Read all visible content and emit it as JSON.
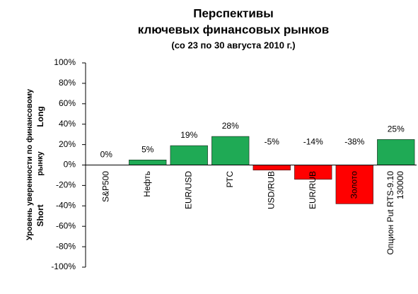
{
  "chart_data": {
    "type": "bar",
    "title": "Перспективы",
    "subtitle_1": "ключевых финансовых рынков",
    "subtitle_2": "(со 23 по 30 августа 2010 г.)",
    "y_label": "Уровень уверенности по финансовому рынку",
    "long_label": "Long",
    "short_label": "Short",
    "categories": [
      "S&P500",
      "Нефть",
      "EUR/USD",
      "РТС",
      "USD/RUB",
      "EUR/RUB",
      "Золото",
      "Опцион Put RTS-9.10 130000"
    ],
    "values": [
      0,
      5,
      19,
      28,
      -5,
      -14,
      -38,
      25
    ],
    "value_labels": [
      "0%",
      "5%",
      "19%",
      "28%",
      "-5%",
      "-14%",
      "-38%",
      "25%"
    ],
    "colors": [
      "#1faa55",
      "#1faa55",
      "#1faa55",
      "#1faa55",
      "#ff0000",
      "#ff0000",
      "#ff0000",
      "#1faa55"
    ],
    "ylim": [
      -100,
      100
    ],
    "yticks": [
      {
        "value": -100,
        "label": "-100%"
      },
      {
        "value": -80,
        "label": "-80%"
      },
      {
        "value": -60,
        "label": "-60%"
      },
      {
        "value": -40,
        "label": "-40%"
      },
      {
        "value": -20,
        "label": "-20%"
      },
      {
        "value": 0,
        "label": "0%"
      },
      {
        "value": 20,
        "label": "20%"
      },
      {
        "value": 40,
        "label": "40%"
      },
      {
        "value": 60,
        "label": "60%"
      },
      {
        "value": 80,
        "label": "80%"
      },
      {
        "value": 100,
        "label": "100%"
      }
    ]
  }
}
